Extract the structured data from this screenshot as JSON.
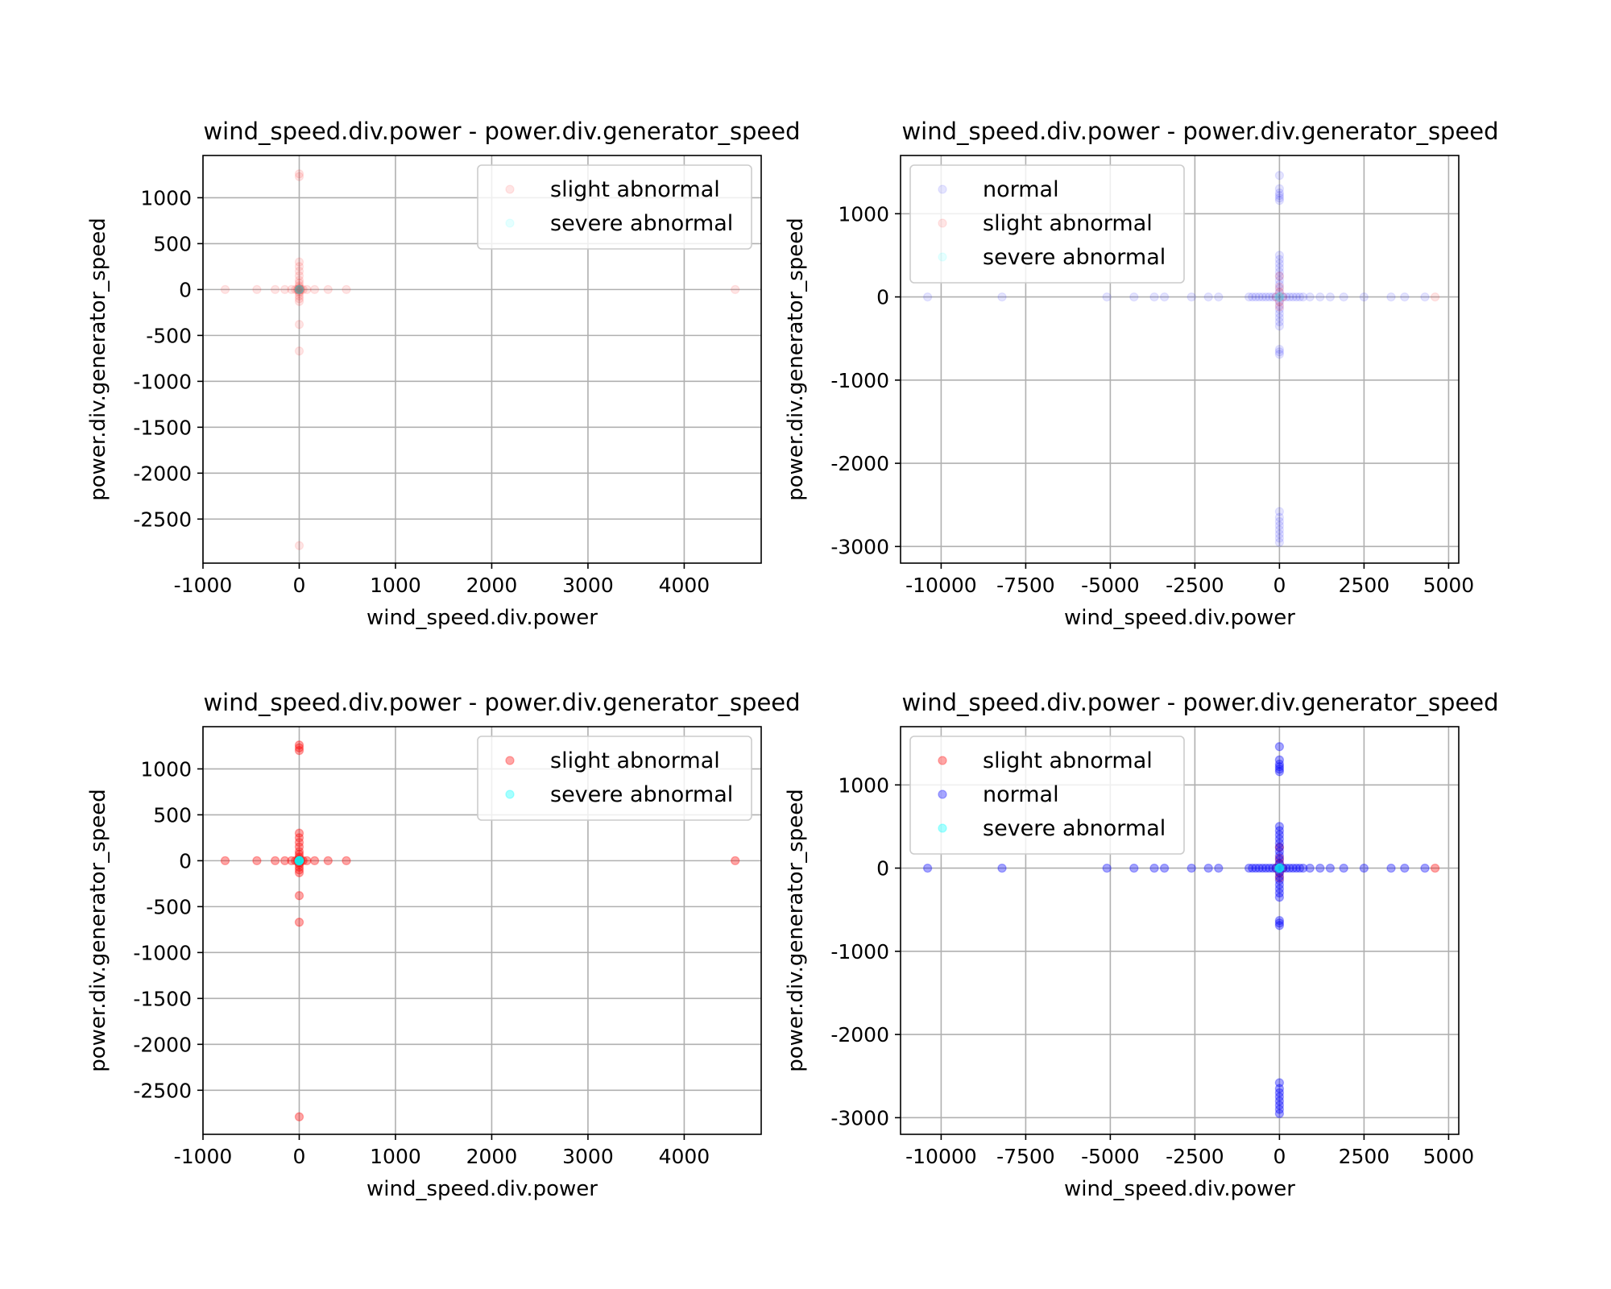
{
  "colors": {
    "slight abnormal": "#ff0000",
    "normal": "#0000ff",
    "severe abnormal": "#00ffff"
  },
  "chart_data": [
    {
      "type": "scatter",
      "title": "wind_speed.div.power - power.div.generator_speed",
      "xlabel": "wind_speed.div.power",
      "ylabel": "power.div.generator_speed",
      "xlim": [
        -1000,
        4800
      ],
      "ylim": [
        -2980,
        1460
      ],
      "xticks": [
        -1000,
        0,
        1000,
        2000,
        3000,
        4000
      ],
      "yticks": [
        1000,
        500,
        0,
        -500,
        -1000,
        -1500,
        -2000,
        -2500
      ],
      "grid": true,
      "legend": "top-right",
      "series": [
        {
          "name": "slight abnormal",
          "color": "#ff0000",
          "alpha": 0.1,
          "points": [
            [
              -770,
              0
            ],
            [
              -440,
              0
            ],
            [
              -250,
              0
            ],
            [
              -150,
              0
            ],
            [
              -80,
              0
            ],
            [
              -40,
              0
            ],
            [
              -20,
              0
            ],
            [
              -10,
              0
            ],
            [
              10,
              0
            ],
            [
              20,
              0
            ],
            [
              40,
              0
            ],
            [
              80,
              0
            ],
            [
              160,
              0
            ],
            [
              300,
              0
            ],
            [
              490,
              0
            ],
            [
              4530,
              0
            ],
            [
              0,
              1230
            ],
            [
              0,
              1260
            ],
            [
              0,
              300
            ],
            [
              0,
              250
            ],
            [
              0,
              200
            ],
            [
              0,
              150
            ],
            [
              0,
              100
            ],
            [
              0,
              70
            ],
            [
              0,
              40
            ],
            [
              0,
              20
            ],
            [
              0,
              -20
            ],
            [
              0,
              -40
            ],
            [
              0,
              -70
            ],
            [
              0,
              -100
            ],
            [
              0,
              -130
            ],
            [
              0,
              -380
            ],
            [
              0,
              -670
            ],
            [
              0,
              -2790
            ],
            [
              5,
              5
            ],
            [
              -5,
              -5
            ],
            [
              3,
              -3
            ],
            [
              -3,
              3
            ]
          ]
        },
        {
          "name": "severe abnormal",
          "color": "#00ffff",
          "alpha": 0.1,
          "points": [
            [
              0,
              0
            ],
            [
              5,
              2
            ],
            [
              -5,
              -2
            ],
            [
              2,
              5
            ],
            [
              -2,
              -5
            ]
          ]
        }
      ]
    },
    {
      "type": "scatter",
      "title": "wind_speed.div.power - power.div.generator_speed",
      "xlabel": "wind_speed.div.power",
      "ylabel": "power.div.generator_speed",
      "xlim": [
        -11200,
        5300
      ],
      "ylim": [
        -3200,
        1700
      ],
      "xticks": [
        -10000,
        -7500,
        -5000,
        -2500,
        0,
        2500,
        5000
      ],
      "yticks": [
        1000,
        0,
        -1000,
        -2000,
        -3000
      ],
      "grid": true,
      "legend": "top-left",
      "series": [
        {
          "name": "normal",
          "color": "#0000ff",
          "alpha": 0.1,
          "points": [
            [
              -10400,
              0
            ],
            [
              -8200,
              0
            ],
            [
              -5100,
              0
            ],
            [
              -4300,
              0
            ],
            [
              -3700,
              0
            ],
            [
              -3400,
              0
            ],
            [
              -2600,
              0
            ],
            [
              -2100,
              0
            ],
            [
              -1800,
              0
            ],
            [
              -900,
              0
            ],
            [
              -800,
              0
            ],
            [
              -700,
              0
            ],
            [
              -600,
              0
            ],
            [
              -500,
              0
            ],
            [
              -400,
              0
            ],
            [
              -300,
              0
            ],
            [
              -200,
              0
            ],
            [
              -100,
              0
            ],
            [
              100,
              0
            ],
            [
              200,
              0
            ],
            [
              300,
              0
            ],
            [
              400,
              0
            ],
            [
              500,
              0
            ],
            [
              600,
              0
            ],
            [
              700,
              0
            ],
            [
              900,
              0
            ],
            [
              1200,
              0
            ],
            [
              1500,
              0
            ],
            [
              1900,
              0
            ],
            [
              2500,
              0
            ],
            [
              3300,
              0
            ],
            [
              3700,
              0
            ],
            [
              4300,
              0
            ],
            [
              0,
              1460
            ],
            [
              0,
              1300
            ],
            [
              0,
              1250
            ],
            [
              0,
              1220
            ],
            [
              0,
              1190
            ],
            [
              0,
              1160
            ],
            [
              0,
              500
            ],
            [
              0,
              450
            ],
            [
              0,
              400
            ],
            [
              0,
              350
            ],
            [
              0,
              300
            ],
            [
              0,
              250
            ],
            [
              0,
              200
            ],
            [
              0,
              150
            ],
            [
              0,
              100
            ],
            [
              0,
              50
            ],
            [
              0,
              -50
            ],
            [
              0,
              -100
            ],
            [
              0,
              -150
            ],
            [
              0,
              -200
            ],
            [
              0,
              -250
            ],
            [
              0,
              -300
            ],
            [
              0,
              -350
            ],
            [
              0,
              -630
            ],
            [
              0,
              -660
            ],
            [
              0,
              -690
            ],
            [
              0,
              -2580
            ],
            [
              0,
              -2650
            ],
            [
              0,
              -2700
            ],
            [
              0,
              -2750
            ],
            [
              0,
              -2800
            ],
            [
              0,
              -2850
            ],
            [
              0,
              -2900
            ],
            [
              0,
              -2950
            ]
          ]
        },
        {
          "name": "slight abnormal",
          "color": "#ff0000",
          "alpha": 0.1,
          "points": [
            [
              4600,
              0
            ],
            [
              -100,
              0
            ],
            [
              100,
              0
            ],
            [
              0,
              120
            ],
            [
              0,
              60
            ],
            [
              0,
              -60
            ],
            [
              0,
              -120
            ],
            [
              0,
              250
            ]
          ]
        },
        {
          "name": "severe abnormal",
          "color": "#00ffff",
          "alpha": 0.1,
          "points": [
            [
              0,
              0
            ],
            [
              20,
              5
            ],
            [
              -20,
              -5
            ]
          ]
        }
      ]
    },
    {
      "type": "scatter",
      "title": "wind_speed.div.power - power.div.generator_speed",
      "xlabel": "wind_speed.div.power",
      "ylabel": "power.div.generator_speed",
      "xlim": [
        -1000,
        4800
      ],
      "ylim": [
        -2980,
        1460
      ],
      "xticks": [
        -1000,
        0,
        1000,
        2000,
        3000,
        4000
      ],
      "yticks": [
        1000,
        500,
        0,
        -500,
        -1000,
        -1500,
        -2000,
        -2500
      ],
      "grid": true,
      "legend": "top-right",
      "series": [
        {
          "name": "slight abnormal",
          "color": "#ff0000",
          "alpha": 0.35,
          "points": [
            [
              -770,
              0
            ],
            [
              -440,
              0
            ],
            [
              -250,
              0
            ],
            [
              -150,
              0
            ],
            [
              -80,
              0
            ],
            [
              -40,
              0
            ],
            [
              -20,
              0
            ],
            [
              -10,
              0
            ],
            [
              10,
              0
            ],
            [
              20,
              0
            ],
            [
              40,
              0
            ],
            [
              80,
              0
            ],
            [
              160,
              0
            ],
            [
              300,
              0
            ],
            [
              490,
              0
            ],
            [
              4530,
              0
            ],
            [
              0,
              1230
            ],
            [
              0,
              1260
            ],
            [
              0,
              1200
            ],
            [
              0,
              300
            ],
            [
              0,
              250
            ],
            [
              0,
              200
            ],
            [
              0,
              150
            ],
            [
              0,
              100
            ],
            [
              0,
              70
            ],
            [
              0,
              40
            ],
            [
              0,
              20
            ],
            [
              0,
              -20
            ],
            [
              0,
              -40
            ],
            [
              0,
              -70
            ],
            [
              0,
              -100
            ],
            [
              0,
              -130
            ],
            [
              0,
              -380
            ],
            [
              0,
              -670
            ],
            [
              0,
              -2790
            ],
            [
              5,
              5
            ],
            [
              -5,
              -5
            ],
            [
              3,
              -3
            ],
            [
              -3,
              3
            ]
          ]
        },
        {
          "name": "severe abnormal",
          "color": "#00ffff",
          "alpha": 0.35,
          "points": [
            [
              0,
              0
            ],
            [
              5,
              2
            ],
            [
              -5,
              -2
            ],
            [
              2,
              5
            ],
            [
              -2,
              -5
            ]
          ]
        }
      ]
    },
    {
      "type": "scatter",
      "title": "wind_speed.div.power - power.div.generator_speed",
      "xlabel": "wind_speed.div.power",
      "ylabel": "power.div.generator_speed",
      "xlim": [
        -11200,
        5300
      ],
      "ylim": [
        -3200,
        1700
      ],
      "xticks": [
        -10000,
        -7500,
        -5000,
        -2500,
        0,
        2500,
        5000
      ],
      "yticks": [
        1000,
        0,
        -1000,
        -2000,
        -3000
      ],
      "grid": true,
      "legend": "top-left",
      "series": [
        {
          "name": "slight abnormal",
          "color": "#ff0000",
          "alpha": 0.35,
          "points": [
            [
              4600,
              0
            ],
            [
              -100,
              0
            ],
            [
              100,
              0
            ],
            [
              0,
              120
            ],
            [
              0,
              60
            ],
            [
              0,
              -60
            ],
            [
              0,
              -120
            ],
            [
              0,
              250
            ]
          ]
        },
        {
          "name": "normal",
          "color": "#0000ff",
          "alpha": 0.35,
          "points": [
            [
              -10400,
              0
            ],
            [
              -8200,
              0
            ],
            [
              -5100,
              0
            ],
            [
              -4300,
              0
            ],
            [
              -3700,
              0
            ],
            [
              -3400,
              0
            ],
            [
              -2600,
              0
            ],
            [
              -2100,
              0
            ],
            [
              -1800,
              0
            ],
            [
              -900,
              0
            ],
            [
              -800,
              0
            ],
            [
              -700,
              0
            ],
            [
              -600,
              0
            ],
            [
              -500,
              0
            ],
            [
              -400,
              0
            ],
            [
              -300,
              0
            ],
            [
              -200,
              0
            ],
            [
              -100,
              0
            ],
            [
              100,
              0
            ],
            [
              200,
              0
            ],
            [
              300,
              0
            ],
            [
              400,
              0
            ],
            [
              500,
              0
            ],
            [
              600,
              0
            ],
            [
              700,
              0
            ],
            [
              900,
              0
            ],
            [
              1200,
              0
            ],
            [
              1500,
              0
            ],
            [
              1900,
              0
            ],
            [
              2500,
              0
            ],
            [
              3300,
              0
            ],
            [
              3700,
              0
            ],
            [
              4300,
              0
            ],
            [
              0,
              1460
            ],
            [
              0,
              1300
            ],
            [
              0,
              1250
            ],
            [
              0,
              1220
            ],
            [
              0,
              1190
            ],
            [
              0,
              1160
            ],
            [
              0,
              500
            ],
            [
              0,
              450
            ],
            [
              0,
              400
            ],
            [
              0,
              350
            ],
            [
              0,
              300
            ],
            [
              0,
              250
            ],
            [
              0,
              200
            ],
            [
              0,
              150
            ],
            [
              0,
              100
            ],
            [
              0,
              50
            ],
            [
              0,
              -50
            ],
            [
              0,
              -100
            ],
            [
              0,
              -150
            ],
            [
              0,
              -200
            ],
            [
              0,
              -250
            ],
            [
              0,
              -300
            ],
            [
              0,
              -350
            ],
            [
              0,
              -630
            ],
            [
              0,
              -660
            ],
            [
              0,
              -690
            ],
            [
              0,
              -2580
            ],
            [
              0,
              -2650
            ],
            [
              0,
              -2700
            ],
            [
              0,
              -2750
            ],
            [
              0,
              -2800
            ],
            [
              0,
              -2850
            ],
            [
              0,
              -2900
            ],
            [
              0,
              -2950
            ]
          ]
        },
        {
          "name": "severe abnormal",
          "color": "#00ffff",
          "alpha": 0.35,
          "points": [
            [
              0,
              0
            ],
            [
              20,
              5
            ],
            [
              -20,
              -5
            ]
          ]
        }
      ]
    }
  ]
}
